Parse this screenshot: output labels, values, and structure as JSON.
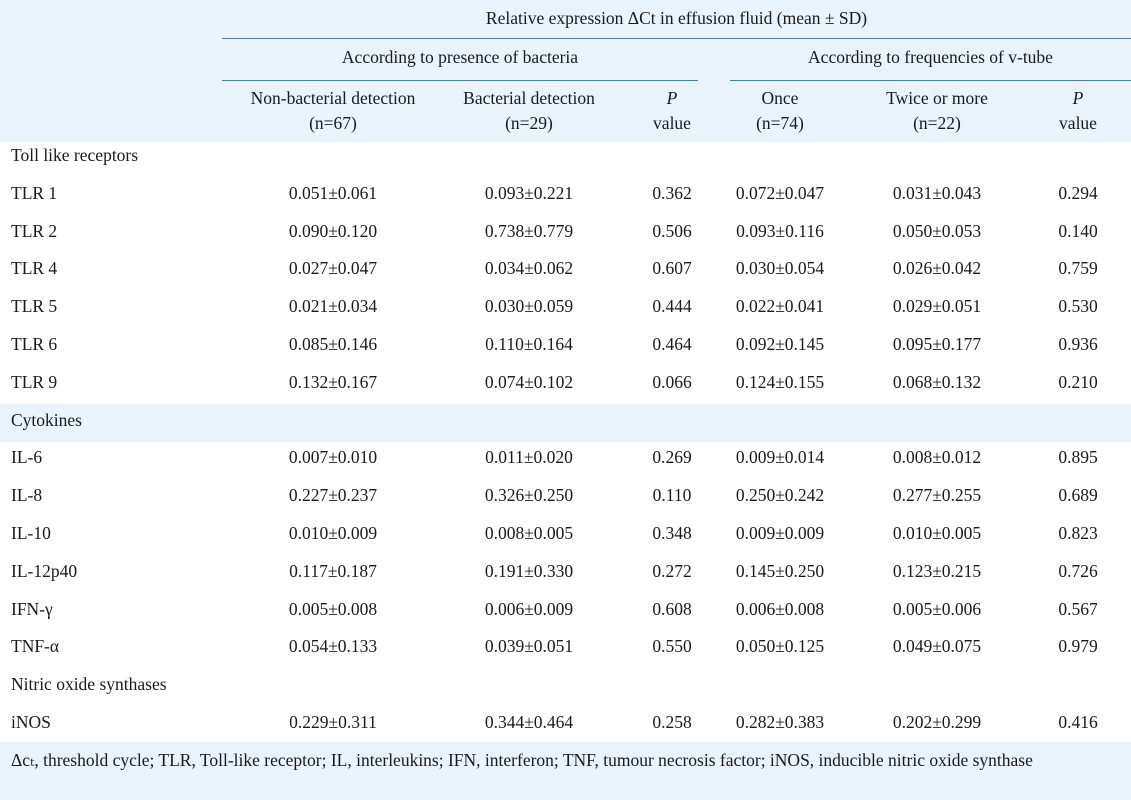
{
  "header": {
    "title": "Relative expression ΔCt in effusion fluid (mean ± SD)",
    "group_bacteria": "According to presence of bacteria",
    "group_vtube": "According to frequencies of v-tube",
    "columns": [
      {
        "line1": "Non-bacterial detection",
        "line2": "(n=67)"
      },
      {
        "line1": "Bacterial detection",
        "line2": "(n=29)"
      },
      {
        "line1": "P",
        "line2": "value"
      },
      {
        "line1": "Once",
        "line2": "(n=74)"
      },
      {
        "line1": "Twice or more",
        "line2": "(n=22)"
      },
      {
        "line1": "P",
        "line2": "value"
      }
    ]
  },
  "sections": [
    {
      "title": "Toll like receptors",
      "rows": [
        {
          "label": "TLR 1",
          "values": [
            "0.051±0.061",
            "0.093±0.221",
            "0.362",
            "0.072±0.047",
            "0.031±0.043",
            "0.294"
          ]
        },
        {
          "label": "TLR 2",
          "values": [
            "0.090±0.120",
            "0.738±0.779",
            "0.506",
            "0.093±0.116",
            "0.050±0.053",
            "0.140"
          ]
        },
        {
          "label": "TLR 4",
          "values": [
            "0.027±0.047",
            "0.034±0.062",
            "0.607",
            "0.030±0.054",
            "0.026±0.042",
            "0.759"
          ]
        },
        {
          "label": "TLR 5",
          "values": [
            "0.021±0.034",
            "0.030±0.059",
            "0.444",
            "0.022±0.041",
            "0.029±0.051",
            "0.530"
          ]
        },
        {
          "label": "TLR 6",
          "values": [
            "0.085±0.146",
            "0.110±0.164",
            "0.464",
            "0.092±0.145",
            "0.095±0.177",
            "0.936"
          ]
        },
        {
          "label": "TLR 9",
          "values": [
            "0.132±0.167",
            "0.074±0.102",
            "0.066",
            "0.124±0.155",
            "0.068±0.132",
            "0.210"
          ]
        }
      ]
    },
    {
      "title": "Cytokines",
      "rows": [
        {
          "label": "IL-6",
          "values": [
            "0.007±0.010",
            "0.011±0.020",
            "0.269",
            "0.009±0.014",
            "0.008±0.012",
            "0.895"
          ]
        },
        {
          "label": "IL-8",
          "values": [
            "0.227±0.237",
            "0.326±0.250",
            "0.110",
            "0.250±0.242",
            "0.277±0.255",
            "0.689"
          ]
        },
        {
          "label": "IL-10",
          "values": [
            "0.010±0.009",
            "0.008±0.005",
            "0.348",
            "0.009±0.009",
            "0.010±0.005",
            "0.823"
          ]
        },
        {
          "label": "IL-12p40",
          "values": [
            "0.117±0.187",
            "0.191±0.330",
            "0.272",
            "0.145±0.250",
            "0.123±0.215",
            "0.726"
          ]
        },
        {
          "label": "IFN-γ",
          "values": [
            "0.005±0.008",
            "0.006±0.009",
            "0.608",
            "0.006±0.008",
            "0.005±0.006",
            "0.567"
          ]
        },
        {
          "label": "TNF-α",
          "values": [
            "0.054±0.133",
            "0.039±0.051",
            "0.550",
            "0.050±0.125",
            "0.049±0.075",
            "0.979"
          ]
        }
      ]
    },
    {
      "title": "Nitric oxide synthases",
      "rows": [
        {
          "label": "iNOS",
          "values": [
            "0.229±0.311",
            "0.344±0.464",
            "0.258",
            "0.282±0.383",
            "0.202±0.299",
            "0.416"
          ]
        }
      ]
    }
  ],
  "footnote": "Δcₜ, threshold cycle; TLR, Toll-like receptor; IL, interleukins; IFN, interferon; TNF, tumour necrosis factor; iNOS, inducible nitric oxide synthase",
  "colors": {
    "band": "#e8f3fb",
    "rule": "#2a8bbf",
    "text": "#1a1a1a"
  }
}
